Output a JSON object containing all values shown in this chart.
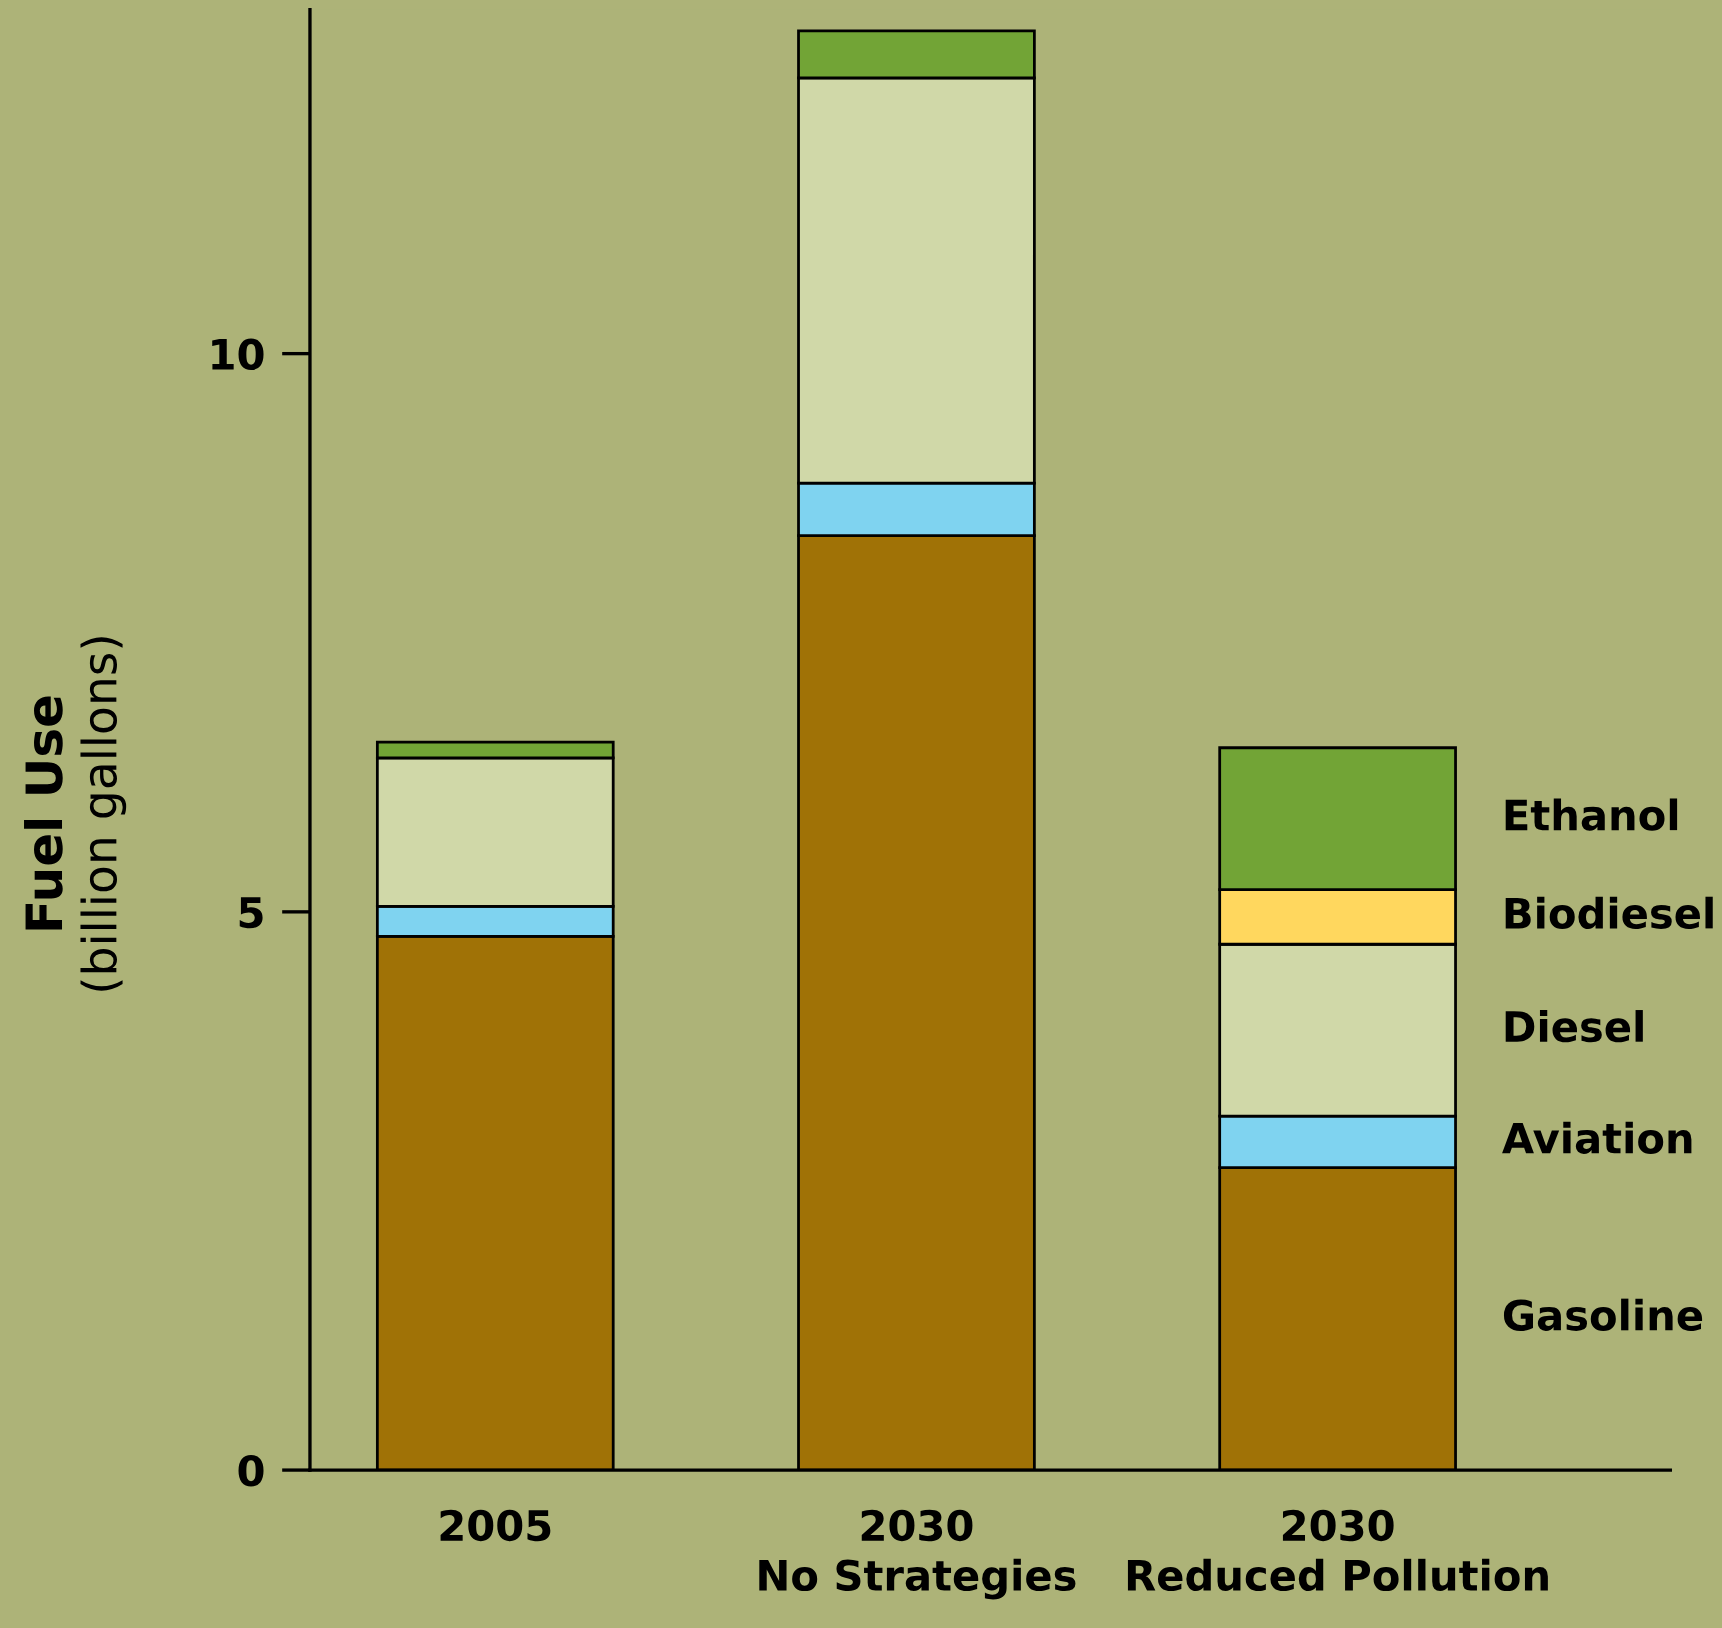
{
  "chart_data": {
    "type": "bar",
    "stacked": true,
    "ylabel": "Fuel Use\n(billion gallons)",
    "categories": [
      "2005",
      "2030\nNo Strategies",
      "2030\nReduced Pollution"
    ],
    "series": [
      {
        "name": "Gasoline",
        "color": "#a07206",
        "values": [
          4.78,
          8.37,
          2.71
        ]
      },
      {
        "name": "Aviation",
        "color": "#7fd3f0",
        "values": [
          0.27,
          0.47,
          0.46
        ]
      },
      {
        "name": "Diesel",
        "color": "#d0d8a8",
        "values": [
          1.33,
          3.63,
          1.54
        ]
      },
      {
        "name": "Biodiesel",
        "color": "#ffd75e",
        "values": [
          0,
          0,
          0.49
        ]
      },
      {
        "name": "Ethanol",
        "color": "#72a436",
        "values": [
          0.14,
          0.42,
          1.27
        ]
      }
    ],
    "ylim": [
      0,
      13.08
    ],
    "yticks": [
      0,
      5,
      10
    ],
    "grid": false,
    "legend": false
  }
}
